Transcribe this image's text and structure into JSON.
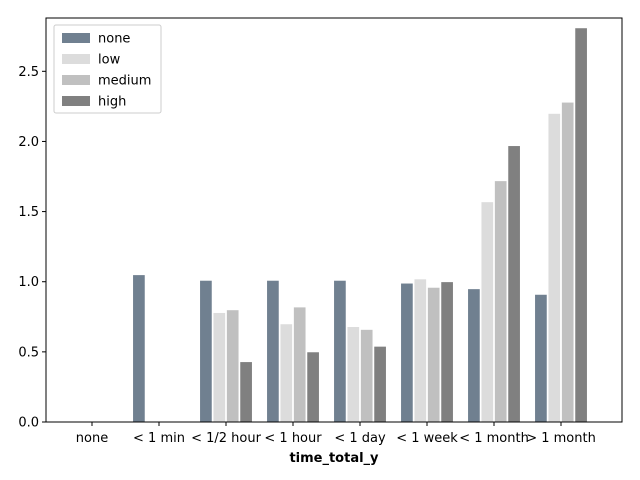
{
  "chart_data": {
    "type": "bar",
    "xlabel": "time_total_y",
    "ylabel": "",
    "title": "",
    "categories": [
      "none",
      "< 1 min",
      "< 1/2 hour",
      "< 1 hour",
      "< 1 day",
      "< 1 week",
      "< 1 month",
      "> 1 month"
    ],
    "ylim": [
      0,
      2.88
    ],
    "yticks": [
      0.0,
      0.5,
      1.0,
      1.5,
      2.0,
      2.5
    ],
    "ytick_labels": [
      "0.0",
      "0.5",
      "1.0",
      "1.5",
      "2.0",
      "2.5"
    ],
    "legend_position": "top-left",
    "grid": false,
    "series": [
      {
        "name": "none",
        "color": "#708090",
        "values": [
          0,
          1.05,
          1.01,
          1.01,
          1.01,
          0.99,
          0.95,
          0.91
        ]
      },
      {
        "name": "low",
        "color": "#dcdcdc",
        "values": [
          0,
          0,
          0.78,
          0.7,
          0.68,
          1.02,
          1.57,
          2.2
        ]
      },
      {
        "name": "medium",
        "color": "#c0c0c0",
        "values": [
          0,
          0,
          0.8,
          0.82,
          0.66,
          0.96,
          1.72,
          2.28
        ]
      },
      {
        "name": "high",
        "color": "#808080",
        "values": [
          0,
          0,
          0.43,
          0.5,
          0.54,
          1.0,
          1.97,
          2.81
        ]
      }
    ]
  }
}
